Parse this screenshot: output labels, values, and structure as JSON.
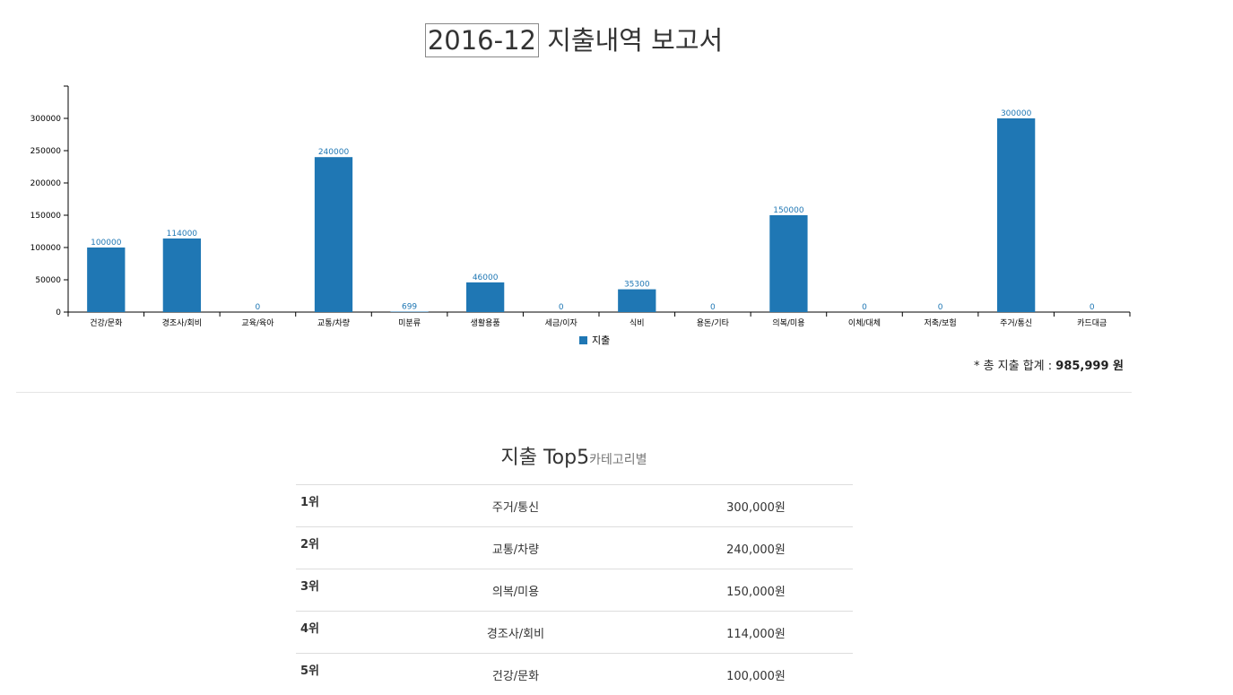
{
  "header": {
    "date": "2016-12",
    "title_rest": "지출내역 보고서"
  },
  "chart_data": {
    "type": "bar",
    "categories": [
      "건강/문화",
      "경조사/회비",
      "교육/육아",
      "교통/차량",
      "미분류",
      "생활용품",
      "세금/이자",
      "식비",
      "용돈/기타",
      "의복/미용",
      "이체/대체",
      "저축/보험",
      "주거/통신",
      "카드대금"
    ],
    "series": [
      {
        "name": "지출",
        "values": [
          100000,
          114000,
          0,
          240000,
          699,
          46000,
          0,
          35300,
          0,
          150000,
          0,
          0,
          300000,
          0
        ],
        "color": "#1f77b4"
      }
    ],
    "value_labels": [
      "100000",
      "114000",
      "0",
      "240000",
      "699",
      "46000",
      "0",
      "35300",
      "0",
      "150000",
      "0",
      "0",
      "300000",
      "0"
    ],
    "y_ticks": [
      0,
      50000,
      100000,
      150000,
      200000,
      250000,
      300000
    ],
    "y_tick_labels": [
      "0",
      "50000",
      "100000",
      "150000",
      "200000",
      "250000",
      "300000"
    ],
    "ylim": [
      0,
      350000
    ],
    "legend": "bottom-center",
    "grid": false
  },
  "total": {
    "prefix": "* 총 지출 합계 : ",
    "value": "985,999",
    "suffix": " 원"
  },
  "top5": {
    "title": "지출 Top5",
    "subtitle": "카테고리별",
    "rows": [
      {
        "rank": "1위",
        "category": "주거/통신",
        "amount": "300,000원"
      },
      {
        "rank": "2위",
        "category": "교통/차량",
        "amount": "240,000원"
      },
      {
        "rank": "3위",
        "category": "의복/미용",
        "amount": "150,000원"
      },
      {
        "rank": "4위",
        "category": "경조사/회비",
        "amount": "114,000원"
      },
      {
        "rank": "5위",
        "category": "건강/문화",
        "amount": "100,000원"
      }
    ]
  }
}
